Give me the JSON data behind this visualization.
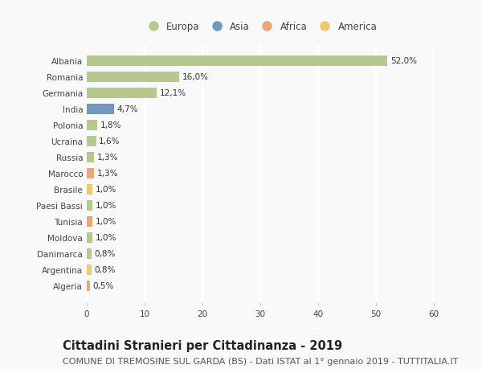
{
  "countries": [
    "Albania",
    "Romania",
    "Germania",
    "India",
    "Polonia",
    "Ucraina",
    "Russia",
    "Marocco",
    "Brasile",
    "Paesi Bassi",
    "Tunisia",
    "Moldova",
    "Danimarca",
    "Argentina",
    "Algeria"
  ],
  "values": [
    52.0,
    16.0,
    12.1,
    4.7,
    1.8,
    1.6,
    1.3,
    1.3,
    1.0,
    1.0,
    1.0,
    1.0,
    0.8,
    0.8,
    0.5
  ],
  "labels": [
    "52,0%",
    "16,0%",
    "12,1%",
    "4,7%",
    "1,8%",
    "1,6%",
    "1,3%",
    "1,3%",
    "1,0%",
    "1,0%",
    "1,0%",
    "1,0%",
    "0,8%",
    "0,8%",
    "0,5%"
  ],
  "continents": [
    "Europa",
    "Europa",
    "Europa",
    "Asia",
    "Europa",
    "Europa",
    "Europa",
    "Africa",
    "America",
    "Europa",
    "Africa",
    "Europa",
    "Europa",
    "America",
    "Africa"
  ],
  "continent_colors": {
    "Europa": "#b5c98e",
    "Asia": "#7097c0",
    "Africa": "#e8a87c",
    "America": "#f0c96b"
  },
  "legend_order": [
    "Europa",
    "Asia",
    "Africa",
    "America"
  ],
  "xlim": [
    0,
    60
  ],
  "xticks": [
    0,
    10,
    20,
    30,
    40,
    50,
    60
  ],
  "title": "Cittadini Stranieri per Cittadinanza - 2019",
  "subtitle": "COMUNE DI TREMOSINE SUL GARDA (BS) - Dati ISTAT al 1° gennaio 2019 - TUTTITALIA.IT",
  "background_color": "#f9f9f9",
  "grid_color": "#ffffff",
  "bar_height": 0.65,
  "title_fontsize": 10.5,
  "subtitle_fontsize": 8,
  "label_fontsize": 7.5,
  "tick_fontsize": 7.5,
  "legend_fontsize": 8.5
}
